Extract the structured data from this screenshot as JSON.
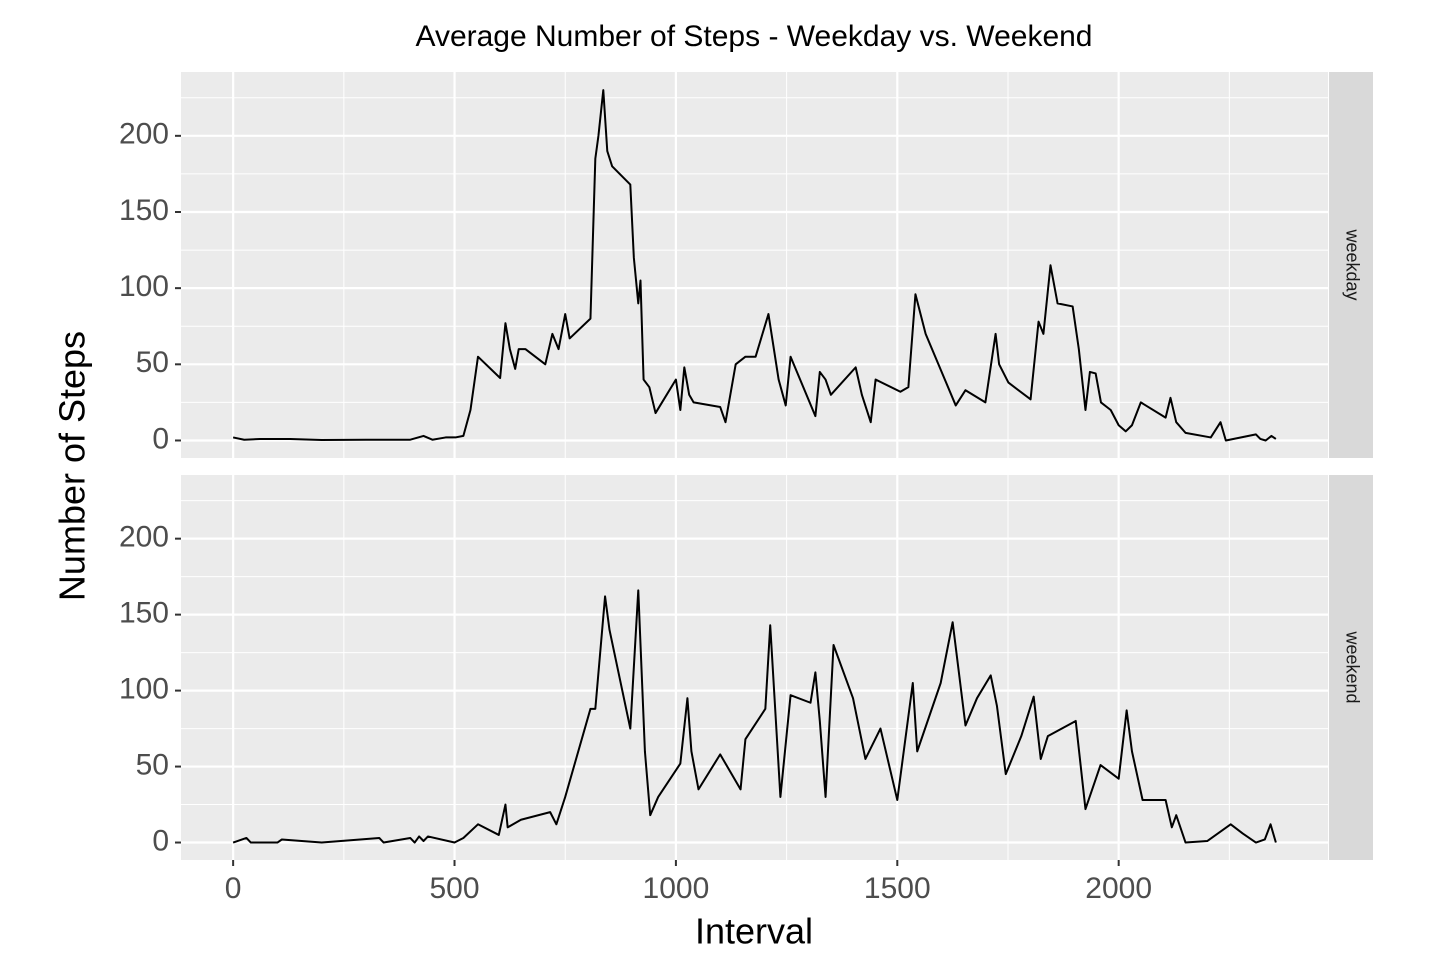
{
  "chart_data": {
    "type": "line",
    "title": "Average Number of Steps - Weekday vs. Weekend",
    "x_label": "Interval",
    "y_label": "Number of Steps",
    "xlim": [
      -117.75,
      2472.75
    ],
    "xticks": [
      0,
      500,
      1000,
      1500,
      2000
    ],
    "xminor": [
      250,
      750,
      1250,
      1750,
      2250
    ],
    "ylim": [
      -11.5,
      241.9
    ],
    "yticks": [
      0,
      50,
      100,
      150,
      200
    ],
    "yminor": [
      25,
      75,
      125,
      175,
      225
    ],
    "grid": true,
    "color": "#000000",
    "facets": [
      {
        "label": "weekday",
        "x": [
          0,
          25,
          60,
          129,
          200,
          300,
          400,
          430,
          450,
          480,
          502,
          520,
          536,
          553,
          603,
          615,
          625,
          637,
          645,
          660,
          705,
          721,
          735,
          750,
          760,
          807,
          818,
          825,
          836,
          845,
          856,
          897,
          905,
          915,
          920,
          927,
          940,
          954,
          1000,
          1010,
          1019,
          1030,
          1040,
          1100,
          1112,
          1135,
          1157,
          1180,
          1209,
          1232,
          1248,
          1259,
          1315,
          1325,
          1338,
          1350,
          1406,
          1420,
          1440,
          1451,
          1507,
          1525,
          1541,
          1564,
          1632,
          1654,
          1699,
          1722,
          1730,
          1751,
          1801,
          1819,
          1830,
          1846,
          1862,
          1896,
          1910,
          1925,
          1935,
          1948,
          1960,
          1982,
          2000,
          2016,
          2030,
          2050,
          2106,
          2117,
          2130,
          2151,
          2208,
          2230,
          2242,
          2310,
          2320,
          2332,
          2345,
          2355
        ],
        "values": [
          2,
          0.5,
          1,
          1,
          0.3,
          0.5,
          0.5,
          3,
          0.5,
          2,
          2,
          3,
          20,
          55,
          41,
          77,
          60,
          47,
          60,
          60,
          50,
          70,
          60,
          83,
          67,
          80,
          185,
          200,
          230,
          190,
          180,
          168,
          120,
          90,
          105,
          40,
          35,
          18,
          40,
          20,
          48,
          30,
          25,
          22,
          12,
          50,
          55,
          55,
          83,
          40,
          23,
          55,
          16,
          45,
          40,
          30,
          48,
          30,
          12,
          40,
          32,
          35,
          96,
          70,
          23,
          33,
          25,
          70,
          50,
          38,
          27,
          78,
          70,
          115,
          90,
          88,
          60,
          20,
          45,
          44,
          25,
          20,
          10,
          6,
          10,
          25,
          15,
          28,
          12,
          5,
          2,
          12,
          0,
          4,
          1,
          0,
          3,
          1
        ]
      },
      {
        "label": "weekend",
        "x": [
          0,
          30,
          40,
          100,
          110,
          200,
          330,
          340,
          400,
          410,
          420,
          430,
          440,
          500,
          520,
          553,
          600,
          615,
          620,
          650,
          716,
          730,
          750,
          807,
          818,
          840,
          850,
          897,
          915,
          930,
          942,
          960,
          1010,
          1026,
          1035,
          1051,
          1100,
          1146,
          1157,
          1202,
          1213,
          1236,
          1259,
          1304,
          1315,
          1325,
          1338,
          1356,
          1400,
          1428,
          1462,
          1500,
          1535,
          1545,
          1598,
          1625,
          1654,
          1680,
          1711,
          1725,
          1745,
          1780,
          1808,
          1824,
          1840,
          1903,
          1925,
          1959,
          2000,
          2018,
          2030,
          2054,
          2106,
          2120,
          2130,
          2151,
          2200,
          2253,
          2280,
          2310,
          2330,
          2343,
          2355
        ],
        "values": [
          0,
          3,
          0,
          0,
          2,
          0,
          3,
          0,
          3,
          0,
          4,
          1,
          4,
          0,
          3,
          12,
          5,
          25,
          10,
          15,
          20,
          12,
          30,
          88,
          88,
          162,
          140,
          75,
          166,
          60,
          18,
          30,
          52,
          95,
          60,
          35,
          58,
          35,
          68,
          88,
          143,
          30,
          97,
          92,
          112,
          80,
          30,
          130,
          95,
          55,
          75,
          28,
          105,
          60,
          105,
          145,
          77,
          95,
          110,
          90,
          45,
          70,
          96,
          55,
          70,
          80,
          22,
          51,
          42,
          87,
          60,
          28,
          28,
          10,
          18,
          0,
          1,
          12,
          6,
          0,
          2,
          12,
          0
        ]
      }
    ]
  }
}
